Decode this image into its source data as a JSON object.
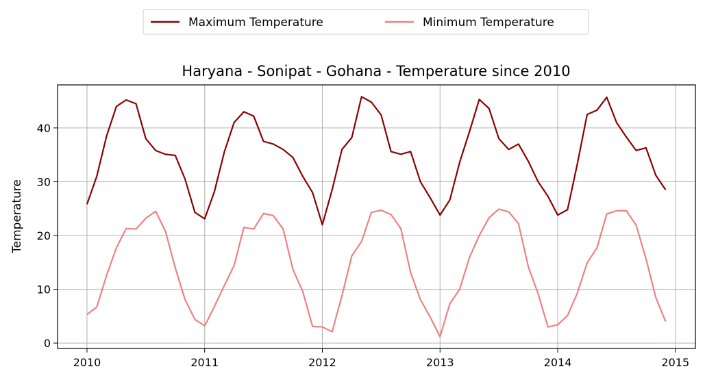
{
  "chart_data": {
    "type": "line",
    "title": "Haryana - Sonipat - Gohana - Temperature since 2010",
    "xlabel": "",
    "ylabel": "Temperature",
    "x_ticks": [
      "2010",
      "2011",
      "2012",
      "2013",
      "2014",
      "2015"
    ],
    "y_ticks": [
      "0",
      "10",
      "20",
      "30",
      "40"
    ],
    "xlim": [
      2009.75,
      2015.17
    ],
    "ylim": [
      -1,
      48
    ],
    "grid": true,
    "legend_position": "top-center",
    "series": [
      {
        "name": "Maximum Temperature",
        "color": "#8b0000",
        "x": [
          2010.0,
          2010.0833,
          2010.1667,
          2010.25,
          2010.3333,
          2010.4167,
          2010.5,
          2010.5833,
          2010.6667,
          2010.75,
          2010.8333,
          2010.9167,
          2011.0,
          2011.0833,
          2011.1667,
          2011.25,
          2011.3333,
          2011.4167,
          2011.5,
          2011.5833,
          2011.6667,
          2011.75,
          2011.8333,
          2011.9167,
          2012.0,
          2012.0833,
          2012.1667,
          2012.25,
          2012.3333,
          2012.4167,
          2012.5,
          2012.5833,
          2012.6667,
          2012.75,
          2012.8333,
          2012.9167,
          2013.0,
          2013.0833,
          2013.1667,
          2013.25,
          2013.3333,
          2013.4167,
          2013.5,
          2013.5833,
          2013.6667,
          2013.75,
          2013.8333,
          2013.9167,
          2014.0,
          2014.0833,
          2014.1667,
          2014.25,
          2014.3333,
          2014.4167,
          2014.5,
          2014.5833,
          2014.6667,
          2014.75,
          2014.8333,
          2014.9167
        ],
        "values": [
          25.8,
          31.0,
          38.5,
          44.0,
          45.2,
          44.5,
          38.0,
          35.8,
          35.1,
          34.9,
          30.5,
          24.3,
          23.1,
          28.2,
          35.5,
          41.0,
          43.0,
          42.2,
          37.5,
          37.0,
          36.0,
          34.5,
          31.0,
          28.0,
          22.0,
          28.5,
          36.0,
          38.2,
          45.8,
          44.8,
          42.4,
          35.6,
          35.1,
          35.6,
          30.0,
          27.0,
          23.8,
          26.6,
          33.6,
          39.3,
          45.3,
          43.6,
          38.0,
          36.0,
          37.0,
          33.8,
          30.0,
          27.3,
          23.8,
          24.8,
          33.3,
          42.5,
          43.3,
          45.7,
          41.0,
          38.3,
          35.8,
          36.3,
          31.2,
          28.5
        ]
      },
      {
        "name": "Minimum Temperature",
        "color": "#f08080",
        "x": [
          2010.0,
          2010.0833,
          2010.1667,
          2010.25,
          2010.3333,
          2010.4167,
          2010.5,
          2010.5833,
          2010.6667,
          2010.75,
          2010.8333,
          2010.9167,
          2011.0,
          2011.0833,
          2011.1667,
          2011.25,
          2011.3333,
          2011.4167,
          2011.5,
          2011.5833,
          2011.6667,
          2011.75,
          2011.8333,
          2011.9167,
          2012.0,
          2012.0833,
          2012.1667,
          2012.25,
          2012.3333,
          2012.4167,
          2012.5,
          2012.5833,
          2012.6667,
          2012.75,
          2012.8333,
          2012.9167,
          2013.0,
          2013.0833,
          2013.1667,
          2013.25,
          2013.3333,
          2013.4167,
          2013.5,
          2013.5833,
          2013.6667,
          2013.75,
          2013.8333,
          2013.9167,
          2014.0,
          2014.0833,
          2014.1667,
          2014.25,
          2014.3333,
          2014.4167,
          2014.5,
          2014.5833,
          2014.6667,
          2014.75,
          2014.8333,
          2014.9167
        ],
        "values": [
          5.3,
          6.7,
          12.6,
          17.7,
          21.3,
          21.2,
          23.2,
          24.5,
          20.8,
          14.0,
          8.1,
          4.4,
          3.2,
          6.8,
          10.7,
          14.4,
          21.5,
          21.2,
          24.1,
          23.7,
          21.2,
          13.7,
          9.6,
          3.1,
          3.0,
          2.1,
          8.8,
          16.2,
          18.9,
          24.3,
          24.7,
          23.9,
          21.3,
          13.1,
          8.1,
          4.8,
          1.2,
          7.3,
          10.0,
          15.9,
          20.0,
          23.3,
          24.9,
          24.4,
          22.2,
          14.2,
          9.2,
          3.0,
          3.4,
          5.1,
          9.3,
          14.9,
          17.7,
          24.0,
          24.6,
          24.6,
          21.9,
          15.7,
          8.5,
          4.0
        ]
      }
    ]
  }
}
